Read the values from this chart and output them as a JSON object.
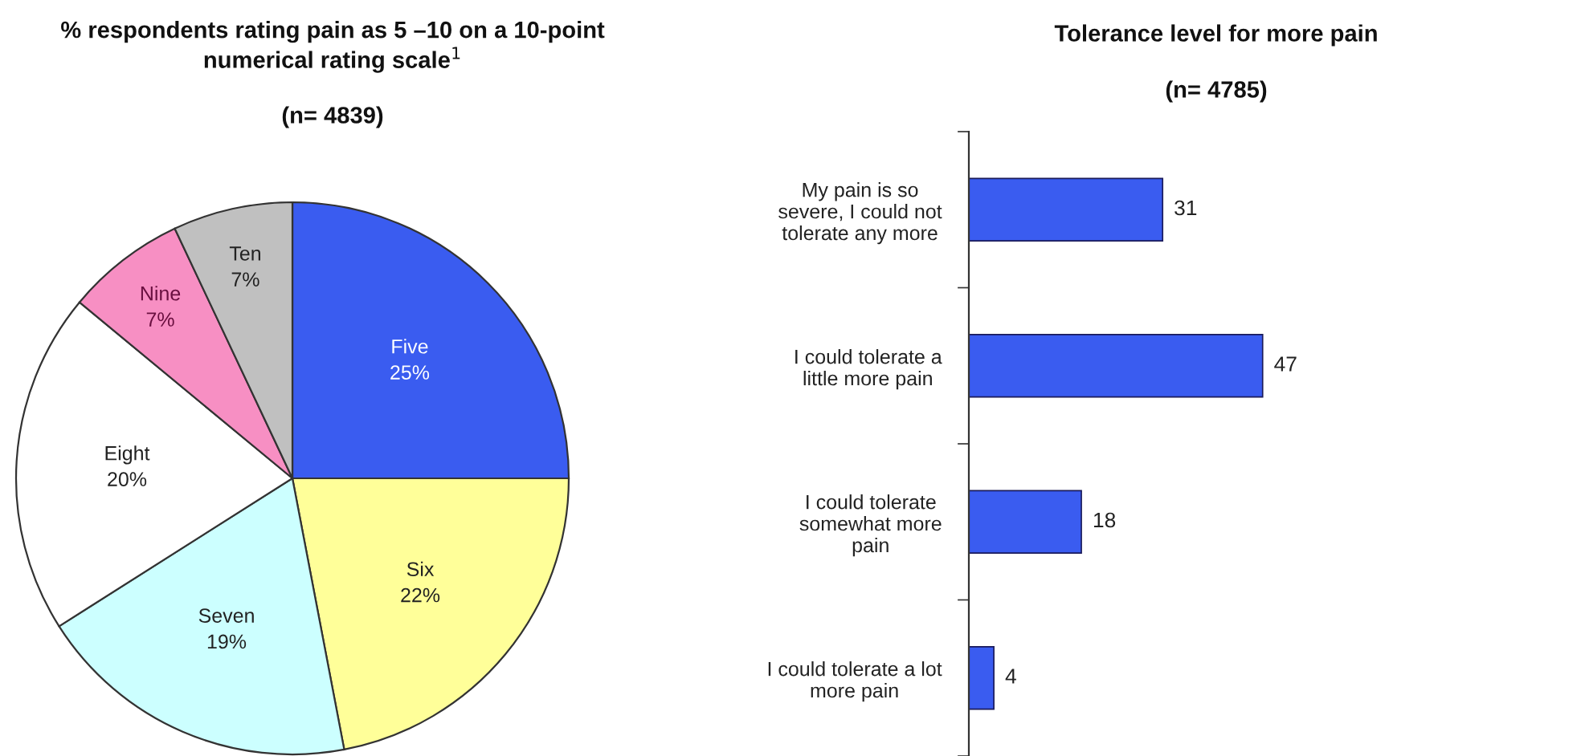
{
  "chart_data": [
    {
      "type": "pie",
      "title": "% respondents rating pain as 5 –10 on a 10-point\nnumerical rating scale$^{1}$",
      "subtitle": "(n= 4839)",
      "categories": [
        "Five",
        "Six",
        "Seven",
        "Eight",
        "Nine",
        "Ten"
      ],
      "values": [
        25,
        22,
        19,
        20,
        7,
        7
      ],
      "value_labels": [
        "25%",
        "22%",
        "19%",
        "20%",
        "7%",
        "7%"
      ],
      "colors": [
        "#3a5cf0",
        "#ffff99",
        "#ccffff",
        "#ffffff",
        "#f78fc3",
        "#c0c0c0"
      ]
    },
    {
      "type": "bar",
      "orientation": "horizontal",
      "title": "Tolerance level for more pain",
      "subtitle": "(n= 4785)",
      "categories": [
        "My pain is so\nsevere, I could not\ntolerate any more",
        "I could tolerate a\nlittle more pain",
        "I could tolerate\nsomewhat more\npain",
        "I could tolerate a lot\nmore pain"
      ],
      "values": [
        31,
        47,
        18,
        4
      ],
      "color": "#3a5cf0",
      "data_labels": true
    }
  ]
}
